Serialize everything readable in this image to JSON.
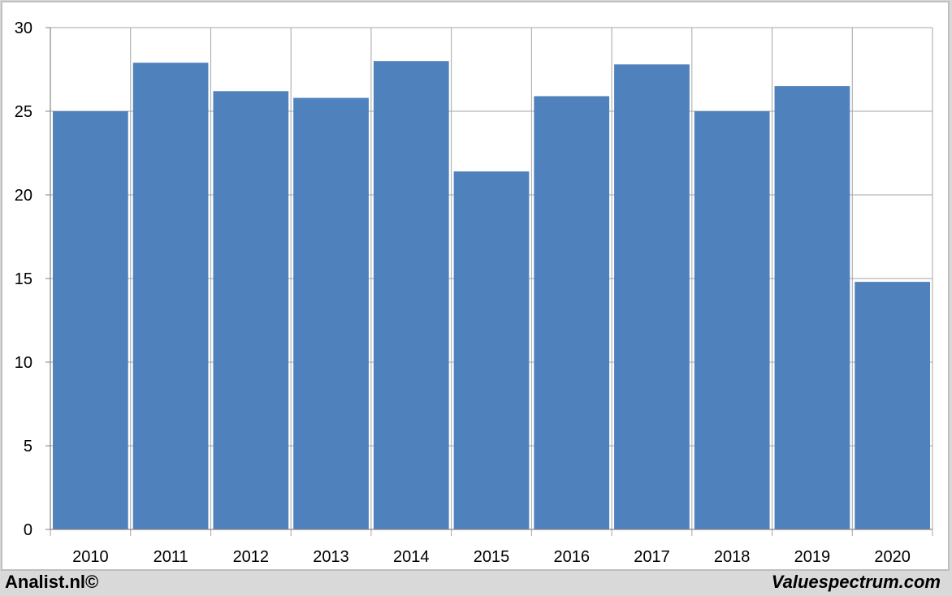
{
  "footer": {
    "left_text": "Analist.nl©",
    "right_text": "Valuespectrum.com"
  },
  "colors": {
    "bar": "#4f81bd",
    "frame_border": "#bfbfbf",
    "footer_bg": "#d9d9d9",
    "grid": "#a6a6a6"
  },
  "chart_data": {
    "type": "bar",
    "title": "",
    "xlabel": "",
    "ylabel": "",
    "categories": [
      "2010",
      "2011",
      "2012",
      "2013",
      "2014",
      "2015",
      "2016",
      "2017",
      "2018",
      "2019",
      "2020"
    ],
    "values": [
      25.0,
      27.9,
      26.2,
      25.8,
      28.0,
      21.4,
      25.9,
      27.8,
      25.0,
      26.5,
      14.8
    ],
    "ylim": [
      0,
      30
    ],
    "yticks": [
      "0",
      "5",
      "10",
      "15",
      "20",
      "25",
      "30"
    ],
    "grid": true,
    "legend": "none"
  }
}
